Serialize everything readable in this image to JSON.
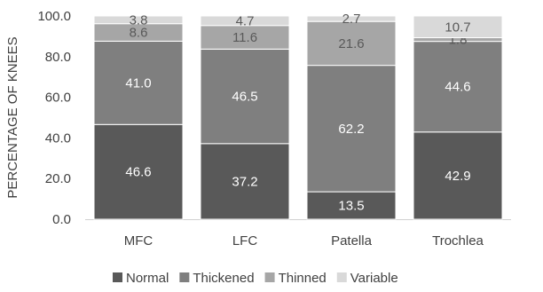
{
  "chart_data": {
    "type": "bar",
    "stacked": true,
    "title": "",
    "xlabel": "",
    "ylabel": "PERCENTAGE OF KNEES",
    "ylim": [
      0,
      100
    ],
    "yticks": [
      "0.0",
      "20.0",
      "40.0",
      "60.0",
      "80.0",
      "100.0"
    ],
    "categories": [
      "MFC",
      "LFC",
      "Patella",
      "Trochlea"
    ],
    "series": [
      {
        "name": "Normal",
        "color": "#595959",
        "values": [
          46.6,
          37.2,
          13.5,
          42.9
        ],
        "labels": [
          "46.6",
          "37.2",
          "13.5",
          "42.9"
        ]
      },
      {
        "name": "Thickened",
        "color": "#7f7f7f",
        "values": [
          41.0,
          46.5,
          62.2,
          44.6
        ],
        "labels": [
          "41.0",
          "46.5",
          "62.2",
          "44.6"
        ]
      },
      {
        "name": "Thinned",
        "color": "#a6a6a6",
        "values": [
          8.6,
          11.6,
          21.6,
          1.8
        ],
        "labels": [
          "8.6",
          "11.6",
          "21.6",
          "1.8"
        ]
      },
      {
        "name": "Variable",
        "color": "#d9d9d9",
        "values": [
          3.8,
          4.7,
          2.7,
          10.7
        ],
        "labels": [
          "3.8",
          "4.7",
          "2.7",
          "10.7"
        ]
      }
    ],
    "grid": false,
    "legend": "bottom"
  }
}
